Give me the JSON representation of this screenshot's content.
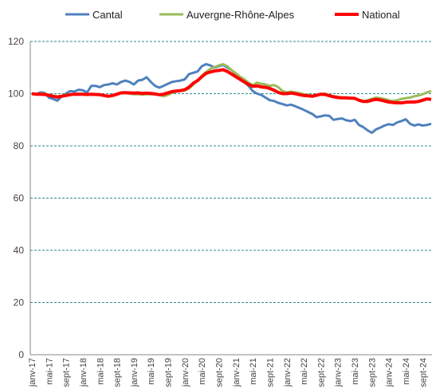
{
  "chart_data": {
    "type": "line",
    "categories": [
      "janv-17",
      null,
      null,
      null,
      "mai-17",
      null,
      null,
      null,
      "sept-17",
      null,
      null,
      null,
      "janv-18",
      null,
      null,
      null,
      "mai-18",
      null,
      null,
      null,
      "sept-18",
      null,
      null,
      null,
      "janv-19",
      null,
      null,
      null,
      "mai-19",
      null,
      null,
      null,
      "sept-19",
      null,
      null,
      null,
      "janv-20",
      null,
      null,
      null,
      "mai-20",
      null,
      null,
      null,
      "sept-20",
      null,
      null,
      null,
      "janv-21",
      null,
      null,
      null,
      "mai-21",
      null,
      null,
      null,
      "sept-21",
      null,
      null,
      null,
      "janv-22",
      null,
      null,
      null,
      "mai-22",
      null,
      null,
      null,
      "sept-22",
      null,
      null,
      null,
      "janv-23",
      null,
      null,
      null,
      "mai-23",
      null,
      null,
      null,
      "sept-23",
      null,
      null,
      null,
      "janv-24",
      null,
      null,
      null,
      "mai-24",
      null,
      null,
      null,
      "sept-24",
      null,
      null
    ],
    "series": [
      {
        "name": "Cantal",
        "color": "#4f81bd",
        "width": 3,
        "values": [
          100,
          99.8,
          100.5,
          100.3,
          98.5,
          98,
          97.3,
          99,
          100,
          101,
          100.8,
          101.5,
          101.3,
          100.5,
          103,
          103,
          102.5,
          103.3,
          103.5,
          104,
          103.5,
          104.5,
          105,
          104.5,
          103.5,
          105,
          105.3,
          106.3,
          104.5,
          103,
          102.3,
          103,
          103.8,
          104.5,
          104.8,
          105,
          105.5,
          107.5,
          108,
          108.5,
          110.5,
          111.3,
          110.8,
          110,
          110.5,
          111,
          110,
          109,
          107.5,
          106,
          104.5,
          103,
          101,
          100,
          99.5,
          98.5,
          97.5,
          97.2,
          96.5,
          96,
          95.5,
          95.8,
          95.2,
          94.5,
          93.8,
          93,
          92.2,
          91,
          91.3,
          91.7,
          91.5,
          90,
          90.3,
          90.5,
          89.8,
          89.5,
          90,
          88,
          87.2,
          86,
          85,
          86.3,
          87,
          87.8,
          88.3,
          88,
          89,
          89.5,
          90.2,
          88.5,
          87.8,
          88.2,
          87.8,
          88,
          88.5
        ]
      },
      {
        "name": "Auvergne-Rhône-Alpes",
        "color": "#9bbb59",
        "width": 3,
        "values": [
          100,
          99.8,
          100,
          100,
          99.5,
          99.3,
          99,
          99.2,
          99.5,
          99.8,
          99.8,
          100,
          100,
          99.8,
          99.8,
          99.7,
          99.5,
          99.3,
          99,
          99.3,
          99.8,
          100.2,
          100.3,
          100,
          99.8,
          99.8,
          99.7,
          99.8,
          99.8,
          99.7,
          99.5,
          99,
          99.5,
          100.3,
          100.8,
          101,
          101.3,
          102,
          103.5,
          105,
          106.8,
          108.3,
          109.5,
          110.2,
          110.8,
          111.3,
          110.5,
          109,
          107.8,
          106.5,
          105.5,
          104.2,
          103.2,
          104.2,
          103.8,
          103.5,
          103,
          103.3,
          102.5,
          101,
          100.5,
          100.8,
          100.5,
          100.2,
          99.8,
          99.5,
          99.3,
          99.5,
          99.8,
          100,
          99.5,
          99,
          98.8,
          98.5,
          98.5,
          98.3,
          98.2,
          97.5,
          97,
          97.5,
          98,
          98.5,
          98.3,
          98,
          97.5,
          97.2,
          97.5,
          98,
          98.3,
          98.5,
          99,
          99.3,
          99.8,
          100.5,
          101
        ]
      },
      {
        "name": "National",
        "color": "#ff0000",
        "width": 4,
        "values": [
          100,
          99.8,
          99.8,
          99.7,
          99.4,
          99,
          98.7,
          99,
          99.3,
          99.6,
          99.8,
          99.8,
          99.8,
          99.7,
          99.8,
          99.7,
          99.6,
          99.3,
          99,
          99.3,
          99.8,
          100.3,
          100.4,
          100.3,
          100.2,
          100.3,
          100.1,
          100.2,
          100.1,
          99.9,
          99.6,
          99.8,
          100.3,
          100.8,
          101,
          101.2,
          101.5,
          102.5,
          104,
          105,
          106.5,
          107.8,
          108.3,
          108.7,
          108.9,
          109.2,
          108.5,
          107.5,
          106.5,
          105.5,
          104.5,
          103.5,
          102.8,
          103,
          102.6,
          102.4,
          102,
          101.3,
          100.5,
          100,
          100,
          100.2,
          100,
          99.6,
          99.3,
          99.2,
          99,
          99.4,
          99.8,
          99.7,
          99.2,
          98.8,
          98.5,
          98.4,
          98.4,
          98.3,
          98.2,
          97.5,
          97,
          97,
          97.5,
          97.8,
          97.6,
          97.2,
          96.8,
          96.6,
          96.5,
          96.5,
          96.7,
          96.8,
          96.8,
          97,
          97.5,
          98,
          97.8
        ]
      }
    ],
    "ylim": [
      0,
      120
    ],
    "yticks": [
      0,
      20,
      40,
      60,
      80,
      100,
      120
    ],
    "grid": true,
    "legend": "top"
  }
}
